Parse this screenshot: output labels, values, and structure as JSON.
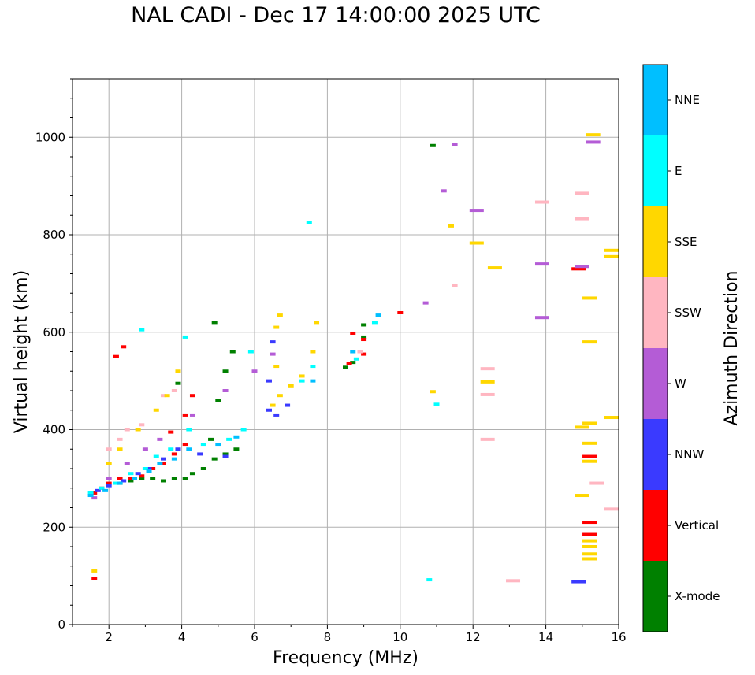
{
  "chart_data": {
    "type": "scatter",
    "title": "NAL CADI - Dec 17 14:00:00 2025 UTC",
    "xlabel": "Frequency (MHz)",
    "ylabel": "Virtual height (km)",
    "xlim": [
      1,
      16
    ],
    "ylim": [
      0,
      1120
    ],
    "xticks": [
      2,
      4,
      6,
      8,
      10,
      12,
      14,
      16
    ],
    "yticks": [
      0,
      200,
      400,
      600,
      800,
      1000
    ],
    "grid": true,
    "colorbar": {
      "label": "Azimuth Direction",
      "categories": [
        {
          "name": "X-mode",
          "color": "#008000"
        },
        {
          "name": "Vertical",
          "color": "#ff0000"
        },
        {
          "name": "NNW",
          "color": "#3a3aff"
        },
        {
          "name": "W",
          "color": "#b45cd6"
        },
        {
          "name": "SSW",
          "color": "#ffb6c1"
        },
        {
          "name": "SSE",
          "color": "#ffd700"
        },
        {
          "name": "E",
          "color": "#00ffff"
        },
        {
          "name": "NNE",
          "color": "#00bfff"
        }
      ]
    },
    "series": [
      {
        "name": "X-mode",
        "points": [
          [
            2.6,
            295
          ],
          [
            2.9,
            300
          ],
          [
            3.2,
            300
          ],
          [
            3.5,
            295
          ],
          [
            3.8,
            300
          ],
          [
            4.1,
            300
          ],
          [
            4.3,
            310
          ],
          [
            4.6,
            320
          ],
          [
            4.9,
            340
          ],
          [
            5.2,
            350
          ],
          [
            5.5,
            360
          ],
          [
            4.8,
            380
          ],
          [
            5.0,
            460
          ],
          [
            5.2,
            520
          ],
          [
            5.4,
            560
          ],
          [
            4.9,
            620
          ],
          [
            3.9,
            495
          ],
          [
            2.3,
            290
          ],
          [
            8.5,
            528
          ],
          [
            8.7,
            538
          ],
          [
            9.0,
            590
          ],
          [
            9.0,
            615
          ],
          [
            10.9,
            983
          ]
        ]
      },
      {
        "name": "Vertical",
        "points": [
          [
            1.6,
            95
          ],
          [
            1.6,
            270
          ],
          [
            1.8,
            280
          ],
          [
            2.0,
            290
          ],
          [
            2.3,
            300
          ],
          [
            2.6,
            300
          ],
          [
            2.9,
            305
          ],
          [
            3.2,
            320
          ],
          [
            3.5,
            330
          ],
          [
            3.8,
            350
          ],
          [
            4.1,
            370
          ],
          [
            3.7,
            395
          ],
          [
            4.1,
            430
          ],
          [
            4.3,
            470
          ],
          [
            2.2,
            550
          ],
          [
            2.4,
            570
          ],
          [
            8.6,
            535
          ],
          [
            8.7,
            598
          ],
          [
            9.0,
            555
          ],
          [
            9.0,
            585
          ],
          [
            10.0,
            640
          ],
          [
            14.9,
            730
          ],
          [
            15.2,
            345
          ],
          [
            15.2,
            210
          ],
          [
            15.2,
            185
          ]
        ]
      },
      {
        "name": "NNW",
        "points": [
          [
            1.7,
            275
          ],
          [
            2.0,
            285
          ],
          [
            2.4,
            295
          ],
          [
            2.8,
            310
          ],
          [
            3.1,
            320
          ],
          [
            3.5,
            340
          ],
          [
            3.9,
            360
          ],
          [
            4.5,
            350
          ],
          [
            5.2,
            345
          ],
          [
            6.4,
            440
          ],
          [
            6.6,
            430
          ],
          [
            6.9,
            450
          ],
          [
            6.4,
            500
          ],
          [
            6.5,
            580
          ],
          [
            14.9,
            88
          ]
        ]
      },
      {
        "name": "W",
        "points": [
          [
            1.6,
            260
          ],
          [
            2.0,
            300
          ],
          [
            2.5,
            330
          ],
          [
            3.0,
            360
          ],
          [
            3.4,
            380
          ],
          [
            4.3,
            430
          ],
          [
            5.2,
            480
          ],
          [
            6.0,
            520
          ],
          [
            6.5,
            555
          ],
          [
            10.7,
            660
          ],
          [
            11.2,
            890
          ],
          [
            11.5,
            985
          ],
          [
            12.1,
            850
          ],
          [
            13.9,
            740
          ],
          [
            13.9,
            630
          ],
          [
            15.0,
            735
          ],
          [
            15.3,
            990
          ]
        ]
      },
      {
        "name": "SSW",
        "points": [
          [
            2.0,
            360
          ],
          [
            2.3,
            380
          ],
          [
            2.5,
            400
          ],
          [
            2.9,
            410
          ],
          [
            3.5,
            470
          ],
          [
            3.8,
            480
          ],
          [
            8.9,
            560
          ],
          [
            12.4,
            525
          ],
          [
            12.4,
            380
          ],
          [
            12.4,
            472
          ],
          [
            11.5,
            695
          ],
          [
            13.1,
            90
          ],
          [
            13.9,
            867
          ],
          [
            15.0,
            885
          ],
          [
            15.0,
            833
          ],
          [
            15.4,
            290
          ],
          [
            15.8,
            237
          ]
        ]
      },
      {
        "name": "SSE",
        "points": [
          [
            1.6,
            110
          ],
          [
            2.0,
            330
          ],
          [
            2.3,
            360
          ],
          [
            2.8,
            400
          ],
          [
            3.3,
            440
          ],
          [
            3.6,
            470
          ],
          [
            3.9,
            520
          ],
          [
            6.5,
            450
          ],
          [
            6.7,
            470
          ],
          [
            7.0,
            490
          ],
          [
            7.3,
            510
          ],
          [
            6.6,
            530
          ],
          [
            6.6,
            610
          ],
          [
            6.7,
            635
          ],
          [
            7.6,
            560
          ],
          [
            7.7,
            620
          ],
          [
            10.9,
            478
          ],
          [
            11.4,
            818
          ],
          [
            12.1,
            783
          ],
          [
            12.6,
            732
          ],
          [
            12.4,
            498
          ],
          [
            15.0,
            405
          ],
          [
            15.0,
            265
          ],
          [
            15.3,
            1005
          ],
          [
            15.2,
            670
          ],
          [
            15.2,
            580
          ],
          [
            15.2,
            413
          ],
          [
            15.2,
            372
          ],
          [
            15.2,
            335
          ],
          [
            15.2,
            172
          ],
          [
            15.2,
            160
          ],
          [
            15.2,
            145
          ],
          [
            15.2,
            135
          ],
          [
            15.8,
            768
          ],
          [
            15.8,
            755
          ],
          [
            15.8,
            425
          ]
        ]
      },
      {
        "name": "E",
        "points": [
          [
            1.5,
            270
          ],
          [
            1.8,
            280
          ],
          [
            2.2,
            290
          ],
          [
            2.6,
            310
          ],
          [
            3.0,
            320
          ],
          [
            3.3,
            345
          ],
          [
            3.7,
            360
          ],
          [
            4.2,
            400
          ],
          [
            4.6,
            370
          ],
          [
            5.3,
            380
          ],
          [
            5.7,
            400
          ],
          [
            5.9,
            560
          ],
          [
            4.1,
            590
          ],
          [
            7.3,
            500
          ],
          [
            7.6,
            530
          ],
          [
            7.5,
            825
          ],
          [
            8.8,
            545
          ],
          [
            9.3,
            620
          ],
          [
            10.8,
            92
          ],
          [
            11.0,
            452
          ],
          [
            2.9,
            605
          ]
        ]
      },
      {
        "name": "NNE",
        "points": [
          [
            1.5,
            265
          ],
          [
            1.9,
            275
          ],
          [
            2.3,
            290
          ],
          [
            2.7,
            300
          ],
          [
            3.1,
            315
          ],
          [
            3.4,
            330
          ],
          [
            3.8,
            340
          ],
          [
            4.2,
            360
          ],
          [
            5.0,
            370
          ],
          [
            5.5,
            385
          ],
          [
            7.6,
            500
          ],
          [
            8.7,
            560
          ],
          [
            9.4,
            635
          ]
        ]
      }
    ]
  }
}
